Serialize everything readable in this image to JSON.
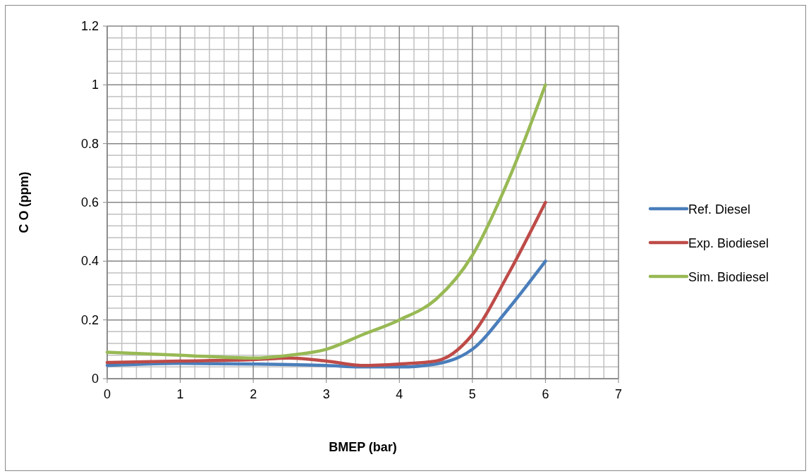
{
  "chart_data": {
    "type": "line",
    "xlabel": "BMEP (bar)",
    "ylabel": "C O (ppm)",
    "xlim": [
      0,
      7
    ],
    "xticks": [
      0,
      1,
      2,
      3,
      4,
      5,
      6,
      7
    ],
    "ylim": [
      0,
      1.2
    ],
    "yticks": [
      0,
      0.2,
      0.4,
      0.6,
      0.8,
      1,
      1.2
    ],
    "grid": true,
    "legend": "right",
    "marker": "none",
    "line_style": "solid",
    "series": [
      {
        "name": "Ref. Diesel",
        "color": "#4a7ebb",
        "x": [
          0,
          1,
          2,
          3,
          3.5,
          4,
          4.5,
          5,
          5.5,
          6
        ],
        "values": [
          0.045,
          0.052,
          0.05,
          0.045,
          0.04,
          0.04,
          0.05,
          0.1,
          0.24,
          0.4
        ]
      },
      {
        "name": "Exp. Biodiesel",
        "color": "#be4b48",
        "x": [
          0,
          1,
          2,
          2.5,
          3,
          3.5,
          4,
          4.5,
          5,
          5.5,
          6
        ],
        "values": [
          0.055,
          0.06,
          0.065,
          0.07,
          0.06,
          0.045,
          0.05,
          0.06,
          0.15,
          0.36,
          0.6
        ]
      },
      {
        "name": "Sim. Biodiesel",
        "color": "#98b954",
        "x": [
          0,
          1,
          2,
          2.5,
          3,
          3.5,
          4,
          4.5,
          5,
          5.5,
          6
        ],
        "values": [
          0.09,
          0.08,
          0.07,
          0.08,
          0.1,
          0.15,
          0.2,
          0.27,
          0.42,
          0.68,
          1.0
        ]
      }
    ]
  }
}
